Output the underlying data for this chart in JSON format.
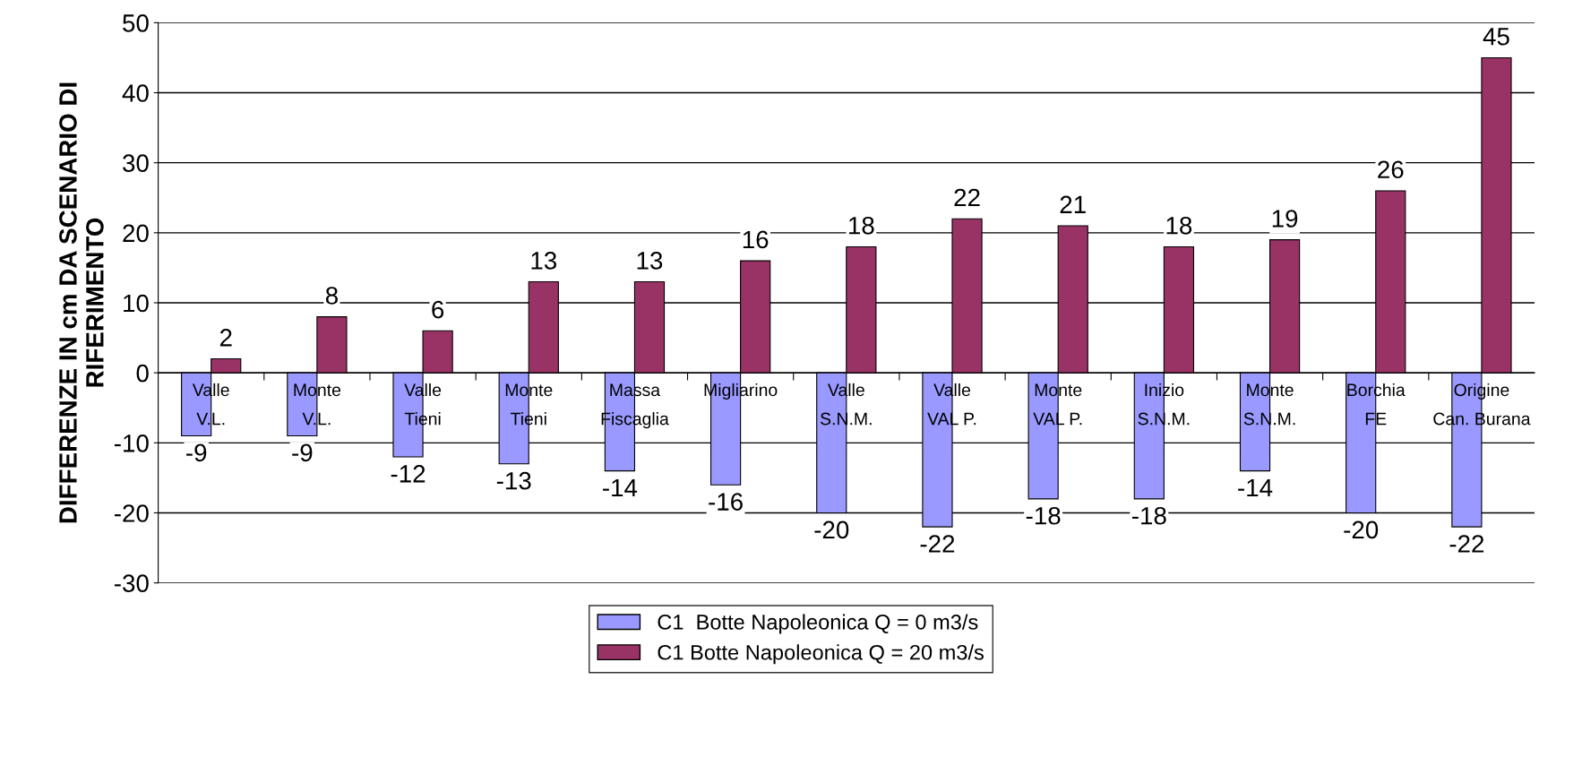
{
  "chart_data": {
    "type": "bar",
    "ylabel": "DIFFERENZE IN cm DA SCENARIO DI RIFERIMENTO",
    "categories": [
      "Valle V.L.",
      "Monte V.L.",
      "Valle Tieni",
      "Monte Tieni",
      "Massa Fiscaglia",
      "Migliarino",
      "Valle S.N.M.",
      "Valle VAL P.",
      "Monte VAL P.",
      "Inizio S.N.M.",
      "Monte S.N.M.",
      "Borchia FE",
      "Origine Can. Burana"
    ],
    "series": [
      {
        "name": "C1  Botte Napoleonica Q = 0 m3/s",
        "color": "#9999ff",
        "values": [
          -9,
          -9,
          -12,
          -13,
          -14,
          -16,
          -20,
          -22,
          -18,
          -18,
          -14,
          -20,
          -22
        ]
      },
      {
        "name": "C1 Botte Napoleonica Q = 20 m3/s",
        "color": "#993366",
        "values": [
          2,
          8,
          6,
          13,
          13,
          16,
          18,
          22,
          21,
          18,
          19,
          26,
          45
        ]
      }
    ],
    "ylim": [
      -30,
      50
    ],
    "yticks": [
      -30,
      -20,
      -10,
      0,
      10,
      20,
      30,
      40,
      50
    ],
    "grid": "y",
    "legend": "bottom",
    "data_labels": true
  }
}
